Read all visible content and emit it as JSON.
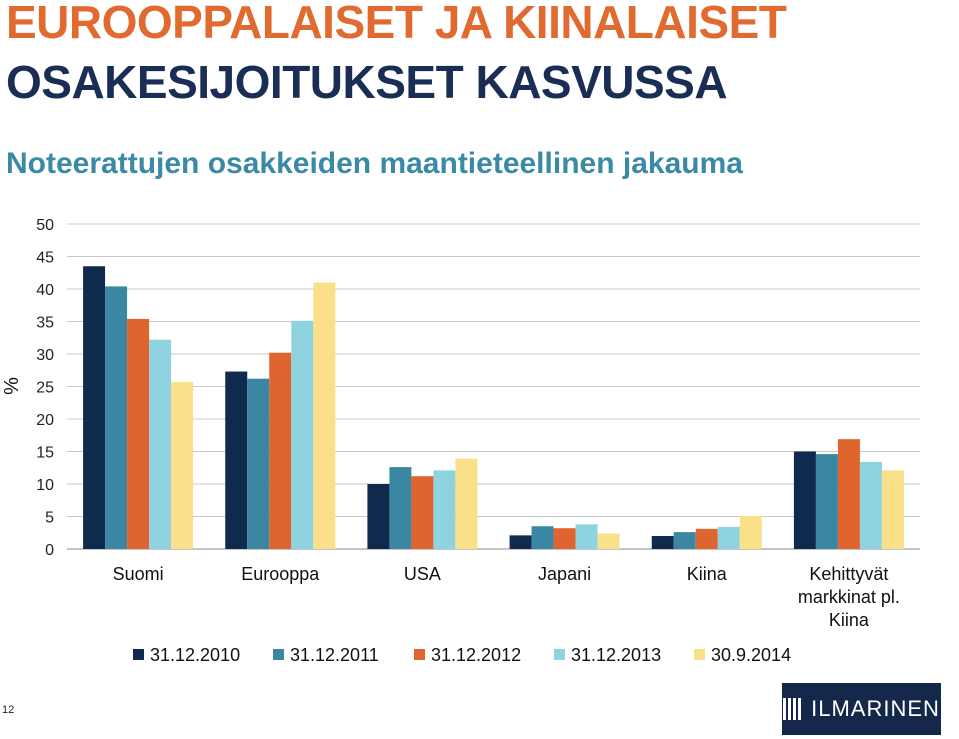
{
  "header": {
    "title_line1": "EUROOPPALAISET JA KIINALAISET",
    "title_line2": "OSAKESIJOITUKSET KASVUSSA",
    "subtitle": "Noteerattujen osakkeiden maantieteellinen jakauma"
  },
  "footer": {
    "page_number": "12",
    "brand_name": "ILMARINEN"
  },
  "chart_data": {
    "type": "bar",
    "ylabel": "%",
    "xlabel": "",
    "ylim": [
      0,
      50
    ],
    "yticks": [
      0,
      5,
      10,
      15,
      20,
      25,
      30,
      35,
      40,
      45,
      50
    ],
    "grid": true,
    "legend_position": "bottom",
    "categories": [
      [
        "Suomi"
      ],
      [
        "Eurooppa"
      ],
      [
        "USA"
      ],
      [
        "Japani"
      ],
      [
        "Kiina"
      ],
      [
        "Kehittyvät",
        "markkinat pl.",
        "Kiina"
      ]
    ],
    "series": [
      {
        "name": "31.12.2010",
        "color": "#0f2a4d",
        "values": [
          43.5,
          27.3,
          10.0,
          2.1,
          2.0,
          15.0
        ]
      },
      {
        "name": "31.12.2011",
        "color": "#3b87a3",
        "values": [
          40.4,
          26.2,
          12.6,
          3.5,
          2.6,
          14.6
        ]
      },
      {
        "name": "31.12.2012",
        "color": "#e0642e",
        "values": [
          35.4,
          30.2,
          11.2,
          3.2,
          3.1,
          16.9
        ]
      },
      {
        "name": "31.12.2013",
        "color": "#8fd3e0",
        "values": [
          32.2,
          35.1,
          12.1,
          3.8,
          3.4,
          13.4
        ]
      },
      {
        "name": "30.9.2014",
        "color": "#fbe08a",
        "values": [
          25.7,
          41.0,
          13.9,
          2.4,
          5.1,
          12.1
        ]
      }
    ]
  }
}
